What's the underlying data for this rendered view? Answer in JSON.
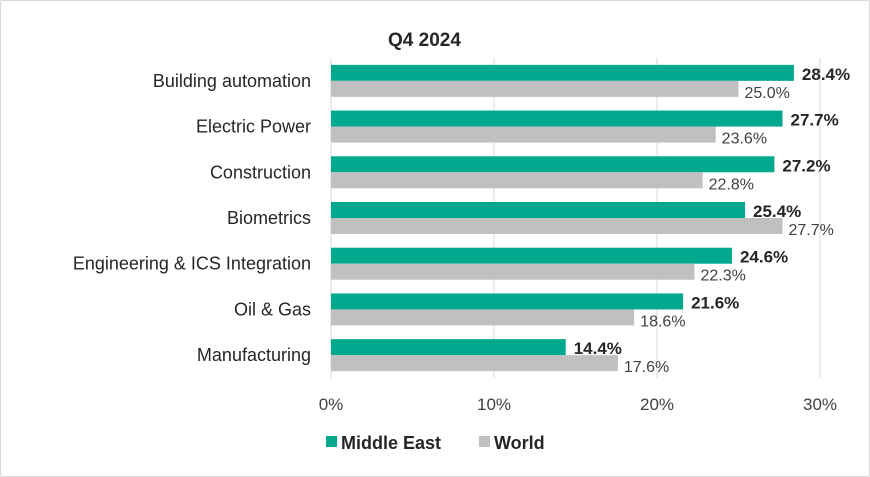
{
  "chart_data": {
    "type": "bar",
    "orientation": "horizontal",
    "title": "Q4 2024",
    "categories": [
      "Building automation",
      "Electric Power",
      "Construction",
      "Biometrics",
      "Engineering & ICS Integration",
      "Oil & Gas",
      "Manufacturing"
    ],
    "series": [
      {
        "name": "Middle East",
        "color": "#00a88e",
        "values": [
          28.4,
          27.7,
          27.2,
          25.4,
          24.6,
          21.6,
          14.4
        ],
        "labels": [
          "28.4%",
          "27.7%",
          "27.2%",
          "25.4%",
          "24.6%",
          "21.6%",
          "14.4%"
        ]
      },
      {
        "name": "World",
        "color": "#c0c0c0",
        "values": [
          25.0,
          23.6,
          22.8,
          27.7,
          22.3,
          18.6,
          17.6
        ],
        "labels": [
          "25.0%",
          "23.6%",
          "22.8%",
          "27.7%",
          "22.3%",
          "18.6%",
          "17.6%"
        ]
      }
    ],
    "xlim": [
      0,
      30
    ],
    "xticks": [
      0,
      10,
      20,
      30
    ],
    "xtick_labels": [
      "0%",
      "10%",
      "20%",
      "30%"
    ],
    "grid": true,
    "legend_position": "bottom"
  }
}
